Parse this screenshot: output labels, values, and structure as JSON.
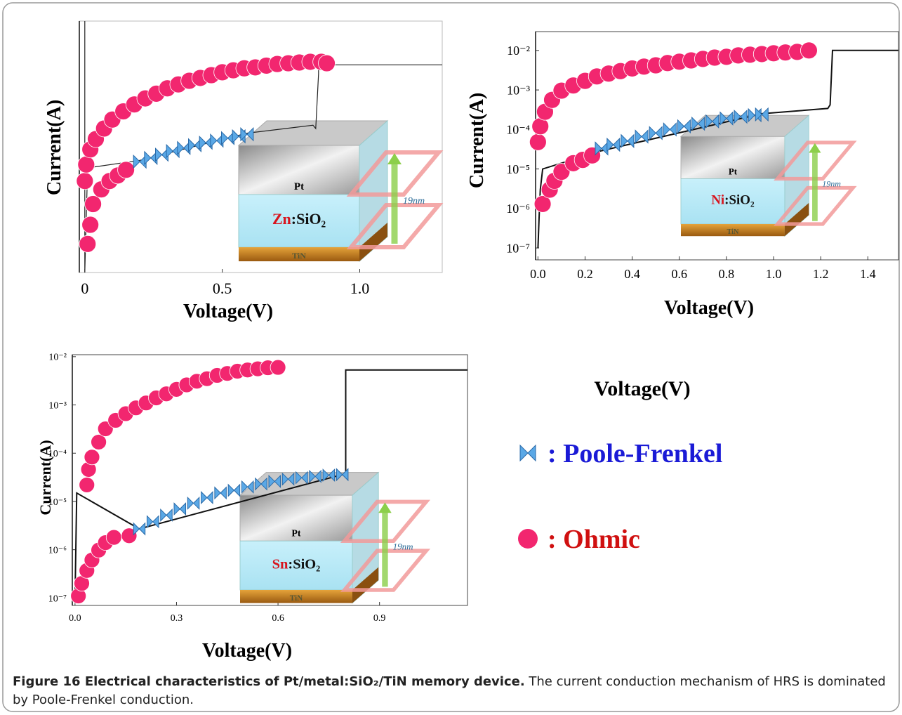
{
  "chart_data": [
    {
      "type": "line",
      "ylog": true,
      "xlabel": "Voltage(V)",
      "ylabel": "Current(A)",
      "xlim": [
        -0.02,
        1.3
      ],
      "ylim": [
        1e-07,
        0.01
      ],
      "xticks": [
        0,
        0.5,
        {
          "value": 1,
          "label": "1.0"
        }
      ],
      "inset": {
        "top": "Pt",
        "dopant": "Zn",
        "host": ":SiO₂",
        "bottom": "TiN",
        "thickness": "19nm"
      },
      "series": [
        {
          "kind": "line",
          "color": "#222222",
          "x": [
            0,
            0,
            0.01,
            0.2,
            0.59,
            0.83,
            0.84,
            0.85,
            0.85,
            1.3
          ],
          "values": [
            0.01,
            1e-07,
            1.2e-05,
            1.7e-05,
            5.9e-05,
            8.5e-05,
            7.3e-05,
            0.00089,
            0.00135,
            0.00135
          ]
        },
        {
          "kind": "circle",
          "color": "#f2266f",
          "x": [
            0,
            0.005,
            0.02,
            0.04,
            0.07,
            0.1,
            0.14,
            0.18,
            0.22,
            0.26,
            0.3,
            0.34,
            0.38,
            0.42,
            0.46,
            0.5,
            0.54,
            0.58,
            0.62,
            0.66,
            0.7,
            0.74,
            0.78,
            0.82,
            0.86,
            0.88
          ],
          "values": [
            6.6e-06,
            1.4e-05,
            2.8e-05,
            4.5e-05,
            7.3e-05,
            0.00011,
            0.00016,
            0.00022,
            0.00029,
            0.00036,
            0.00046,
            0.00055,
            0.00065,
            0.00074,
            0.00084,
            0.00096,
            0.00105,
            0.00115,
            0.0012,
            0.0013,
            0.0014,
            0.00145,
            0.0015,
            0.00155,
            0.00155,
            0.00145
          ]
        },
        {
          "kind": "circle",
          "color": "#f2266f",
          "x": [
            0.01,
            0.02,
            0.03,
            0.06,
            0.09,
            0.12,
            0.15
          ],
          "values": [
            3.7e-07,
            8.9e-07,
            2.3e-06,
            4.5e-06,
            6.6e-06,
            8.5e-06,
            1.1e-05
          ]
        },
        {
          "kind": "bowtie",
          "color": "#5aa8e6",
          "x": [
            0.2,
            0.24,
            0.28,
            0.32,
            0.36,
            0.4,
            0.44,
            0.48,
            0.52,
            0.56,
            0.59
          ],
          "values": [
            1.6e-05,
            1.9e-05,
            2.2e-05,
            2.6e-05,
            3e-05,
            3.4e-05,
            3.8e-05,
            4.2e-05,
            4.7e-05,
            5.1e-05,
            5.6e-05
          ]
        }
      ]
    },
    {
      "type": "line",
      "ylog": true,
      "xlabel": "Voltage(V)",
      "ylabel": "Current(A)",
      "xlim": [
        -0.01,
        1.53
      ],
      "ylim": [
        5e-08,
        0.03
      ],
      "xticks": [
        {
          "value": 0,
          "label": "0.0"
        },
        0.2,
        0.4,
        0.6,
        0.8,
        {
          "value": 1,
          "label": "1.0"
        },
        1.2,
        1.4
      ],
      "yticks": [
        {
          "value": 1e-07,
          "label": "10⁻⁷"
        },
        {
          "value": 1e-06,
          "label": "10⁻⁶"
        },
        {
          "value": 1e-05,
          "label": "10⁻⁵"
        },
        {
          "value": 0.0001,
          "label": "10⁻⁴"
        },
        {
          "value": 0.001,
          "label": "10⁻³"
        },
        {
          "value": 0.01,
          "label": "10⁻²"
        }
      ],
      "inset": {
        "top": "Pt",
        "dopant": "Ni",
        "host": ":SiO₂",
        "bottom": "TiN",
        "thickness": "19nm"
      },
      "series": [
        {
          "kind": "line",
          "color": "#111111",
          "x": [
            0,
            0.005,
            0.01,
            0.02,
            0.27,
            0.95,
            1.23,
            1.24,
            1.25,
            1.53
          ],
          "values": [
            1e-07,
            5.9e-07,
            3e-06,
            1e-05,
            2.9e-05,
            0.00025,
            0.00034,
            0.00042,
            0.01,
            0.01
          ]
        },
        {
          "kind": "circle",
          "color": "#f2266f",
          "x": [
            0,
            0.01,
            0.03,
            0.06,
            0.1,
            0.15,
            0.2,
            0.25,
            0.3,
            0.35,
            0.4,
            0.45,
            0.5,
            0.55,
            0.6,
            0.65,
            0.7,
            0.75,
            0.8,
            0.85,
            0.9,
            0.95,
            1.0,
            1.05,
            1.1,
            1.15
          ],
          "values": [
            4.8e-05,
            0.00012,
            0.00028,
            0.00056,
            0.00096,
            0.0013,
            0.0017,
            0.0022,
            0.0026,
            0.003,
            0.0035,
            0.0039,
            0.0042,
            0.0048,
            0.0052,
            0.0056,
            0.0061,
            0.0066,
            0.0069,
            0.0075,
            0.0078,
            0.0081,
            0.0085,
            0.0089,
            0.0092,
            0.01
          ]
        },
        {
          "kind": "circle",
          "color": "#f2266f",
          "x": [
            0.02,
            0.05,
            0.07,
            0.1,
            0.15,
            0.19,
            0.23
          ],
          "values": [
            1.3e-06,
            3e-06,
            5e-06,
            8.5e-06,
            1.4e-05,
            1.7e-05,
            2.2e-05
          ]
        },
        {
          "kind": "bowtie",
          "color": "#5aa8e6",
          "x": [
            0.27,
            0.32,
            0.38,
            0.44,
            0.5,
            0.56,
            0.62,
            0.68,
            0.74,
            0.8,
            0.86,
            0.92,
            0.95
          ],
          "values": [
            3.3e-05,
            4.1e-05,
            5.1e-05,
            6.6e-05,
            8.1e-05,
            0.0001,
            0.00012,
            0.00014,
            0.00016,
            0.00019,
            0.00021,
            0.00023,
            0.00024
          ]
        }
      ]
    },
    {
      "type": "line",
      "ylog": true,
      "xlabel": "Voltage(V)",
      "ylabel": "Current(A)",
      "xlim": [
        -0.008,
        1.16
      ],
      "ylim": [
        7e-08,
        0.011
      ],
      "xticks": [
        {
          "value": 0,
          "label": "0.0"
        },
        0.3,
        0.6,
        0.9
      ],
      "yticks": [
        {
          "value": 1e-07,
          "label": "10⁻⁷"
        },
        {
          "value": 1e-06,
          "label": "10⁻⁶"
        },
        {
          "value": 1e-05,
          "label": "10⁻⁵"
        },
        {
          "value": 0.0001,
          "label": "10⁻⁴"
        },
        {
          "value": 0.001,
          "label": "10⁻³"
        },
        {
          "value": 0.01,
          "label": "10⁻²"
        }
      ],
      "inset": {
        "top": "Pt",
        "dopant": "Sn",
        "host": ":SiO₂",
        "bottom": "TiN",
        "thickness": "19nm"
      },
      "series": [
        {
          "kind": "line",
          "color": "#111111",
          "x": [
            0,
            0.005,
            0.19,
            0.79,
            0.8,
            0.8,
            1.16
          ],
          "values": [
            1e-07,
            1.5e-05,
            2.7e-06,
            3.6e-05,
            3.8e-05,
            0.0053,
            0.0053
          ]
        },
        {
          "kind": "circle",
          "color": "#f2266f",
          "x": [
            0.035,
            0.04,
            0.05,
            0.07,
            0.09,
            0.12,
            0.15,
            0.18,
            0.21,
            0.24,
            0.27,
            0.3,
            0.33,
            0.36,
            0.39,
            0.42,
            0.45,
            0.48,
            0.51,
            0.54,
            0.57,
            0.6
          ],
          "values": [
            2.2e-05,
            4.6e-05,
            8.3e-05,
            0.00017,
            0.00032,
            0.00048,
            0.00066,
            0.00087,
            0.0011,
            0.0014,
            0.0017,
            0.0021,
            0.0026,
            0.0031,
            0.0035,
            0.0041,
            0.0045,
            0.005,
            0.0053,
            0.0056,
            0.0059,
            0.006
          ]
        },
        {
          "kind": "circle",
          "color": "#f2266f",
          "x": [
            0.01,
            0.02,
            0.035,
            0.05,
            0.07,
            0.09,
            0.115,
            0.16
          ],
          "values": [
            1.1e-07,
            2e-07,
            3.7e-07,
            6.1e-07,
            9.8e-07,
            1.4e-06,
            1.8e-06,
            1.95e-06
          ]
        },
        {
          "kind": "bowtie",
          "color": "#5aa8e6",
          "x": [
            0.19,
            0.23,
            0.27,
            0.31,
            0.35,
            0.39,
            0.43,
            0.47,
            0.51,
            0.55,
            0.59,
            0.63,
            0.67,
            0.71,
            0.75,
            0.79
          ],
          "values": [
            2.7e-06,
            3.8e-06,
            5.2e-06,
            7e-06,
            9.2e-06,
            1.2e-05,
            1.5e-05,
            1.7e-05,
            2e-05,
            2.3e-05,
            2.6e-05,
            2.9e-05,
            3.1e-05,
            3.3e-05,
            3.5e-05,
            3.6e-05
          ]
        }
      ]
    }
  ],
  "legend": {
    "title": "Voltage(V)",
    "items": [
      {
        "label": ": Poole-Frenkel",
        "kind": "bowtie",
        "color": "#5aa8e6",
        "text_color": "#1a1ad6"
      },
      {
        "label": ": Ohmic",
        "kind": "circle",
        "color": "#f2266f",
        "text_color": "#d01010"
      }
    ]
  },
  "caption": {
    "label": "Figure 16 Electrical characteristics of Pt/metal:SiO₂/TiN memory device.",
    "text": "The current conduction mechanism of HRS is dominated by Poole-Frenkel conduction."
  }
}
